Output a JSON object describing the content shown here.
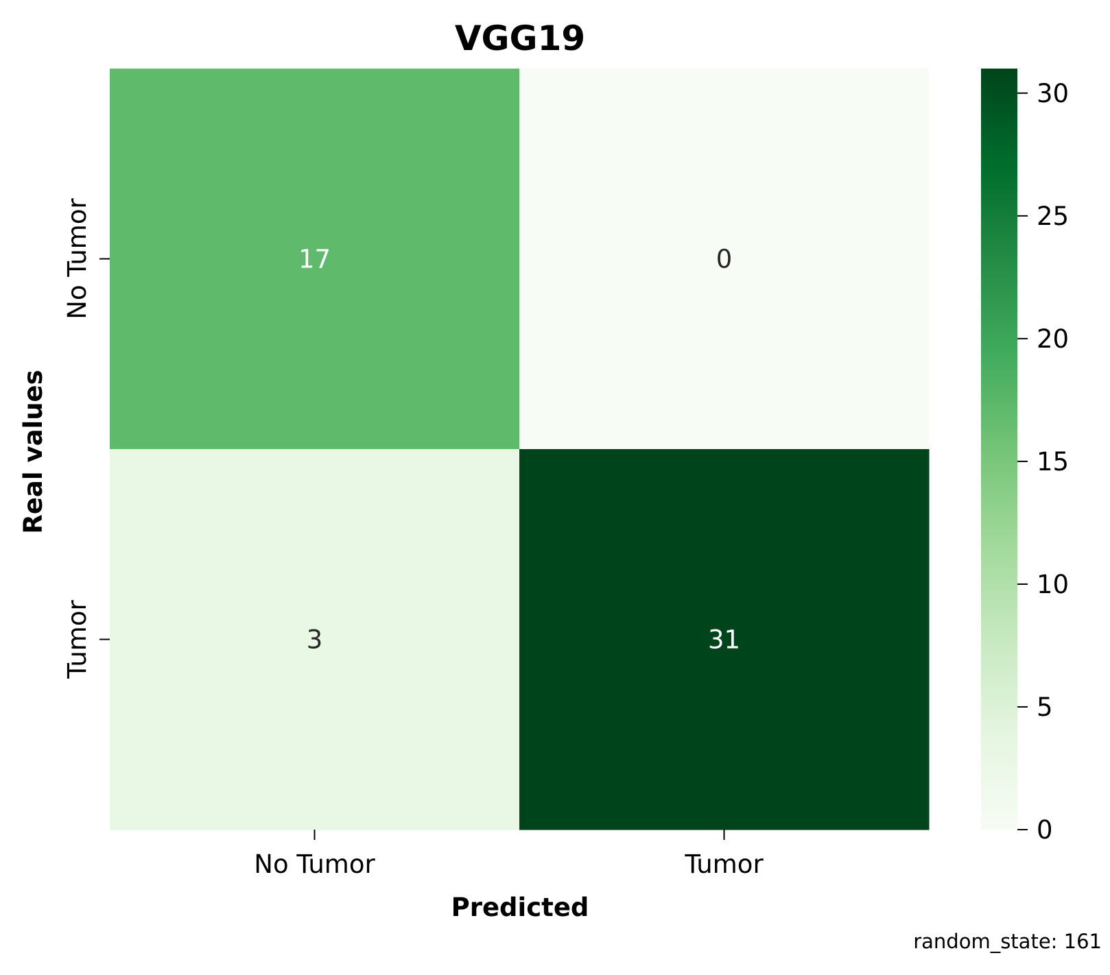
{
  "chart_data": {
    "type": "heatmap",
    "title": "VGG19",
    "xlabel": "Predicted",
    "ylabel": "Real values",
    "x_categories": [
      "No Tumor",
      "Tumor"
    ],
    "y_categories": [
      "No Tumor",
      "Tumor"
    ],
    "matrix": [
      [
        17,
        0
      ],
      [
        3,
        31
      ]
    ],
    "colormap": "Greens",
    "colorbar": {
      "range": [
        0,
        31
      ],
      "ticks": [
        0,
        5,
        10,
        15,
        20,
        25,
        30
      ]
    },
    "grid": false
  },
  "footnote": "random_state: 161"
}
